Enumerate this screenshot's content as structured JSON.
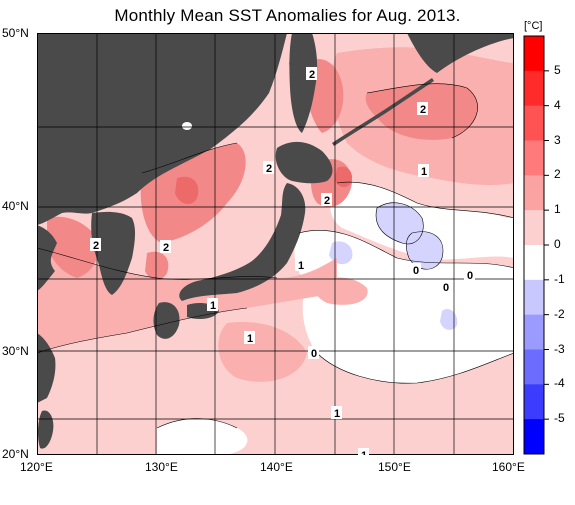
{
  "title": "Monthly Mean SST Anomalies for Aug. 2013.",
  "unit_label": "[°C]",
  "lat_labels": [
    "50°N",
    "40°N",
    "30°N",
    "20°N"
  ],
  "lon_labels": [
    "120°E",
    "130°E",
    "140°E",
    "150°E",
    "160°E"
  ],
  "colorbar": {
    "levels": [
      "5",
      "4",
      "3",
      "2",
      "1",
      "0",
      "-1",
      "-2",
      "-3",
      "-4",
      "-5"
    ],
    "colors": [
      "#ff0000",
      "#ff2a2a",
      "#ff5252",
      "#ff7a7a",
      "#fba3a3",
      "#fdd0d0",
      "#ffffff",
      "#c8c8ff",
      "#9a9aff",
      "#6c6cff",
      "#3c3cff",
      "#0000ff"
    ]
  },
  "contour_labels": [
    {
      "text": "2"
    },
    {
      "text": "2"
    },
    {
      "text": "2"
    },
    {
      "text": "2"
    },
    {
      "text": "2"
    },
    {
      "text": "2"
    },
    {
      "text": "1"
    },
    {
      "text": "1"
    },
    {
      "text": "1"
    },
    {
      "text": "1"
    },
    {
      "text": "1"
    },
    {
      "text": "1"
    },
    {
      "text": "0"
    },
    {
      "text": "0"
    },
    {
      "text": "0"
    },
    {
      "text": "0"
    }
  ],
  "colors": {
    "land": "#4a4a4a",
    "grid": "#000000"
  }
}
